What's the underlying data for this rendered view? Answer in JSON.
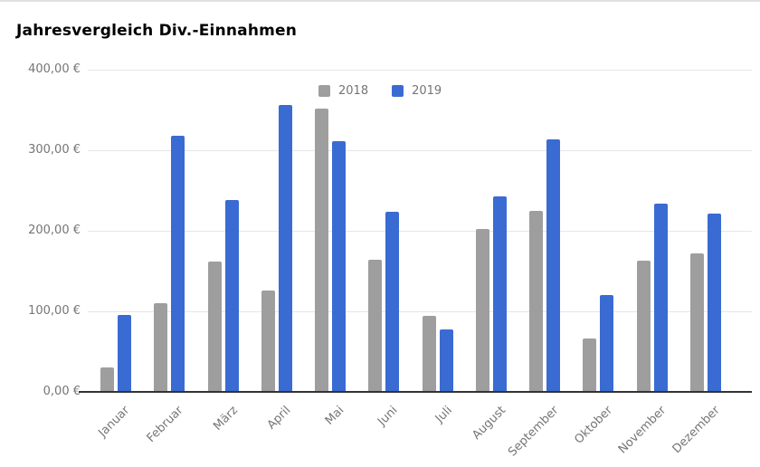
{
  "window": {
    "background": "#ffffff",
    "top_border_color": "#e0e0e0"
  },
  "chart_data": {
    "type": "bar",
    "title": "Jahresvergleich Div.-Einnahmen",
    "categories": [
      "Januar",
      "Februar",
      "März",
      "April",
      "Mai",
      "Juni",
      "Juli",
      "August",
      "September",
      "Oktober",
      "November",
      "Dezember"
    ],
    "series": [
      {
        "name": "2018",
        "color": "#9e9e9e",
        "values": [
          30,
          110,
          162,
          126,
          352,
          164,
          94,
          202,
          225,
          66,
          163,
          172
        ]
      },
      {
        "name": "2019",
        "color": "#3a6bd2",
        "values": [
          95,
          318,
          238,
          356,
          311,
          224,
          78,
          243,
          314,
          120,
          234,
          221
        ]
      }
    ],
    "y_axis": {
      "min": 0,
      "max": 400,
      "tick_interval": 100,
      "tick_values": [
        0,
        100,
        200,
        300,
        400
      ],
      "tick_labels": [
        "0,00 €",
        "100,00 €",
        "200,00 €",
        "300,00 €",
        "400,00 €"
      ],
      "unit": "EUR"
    },
    "x_label_rotation": 45,
    "grid": true,
    "legend_position": "top-center"
  },
  "styles": {
    "gridline_color": "#e6e6e6",
    "axis_line_color": "#333333",
    "axis_label_color": "#757575",
    "title_color": "#000000"
  }
}
